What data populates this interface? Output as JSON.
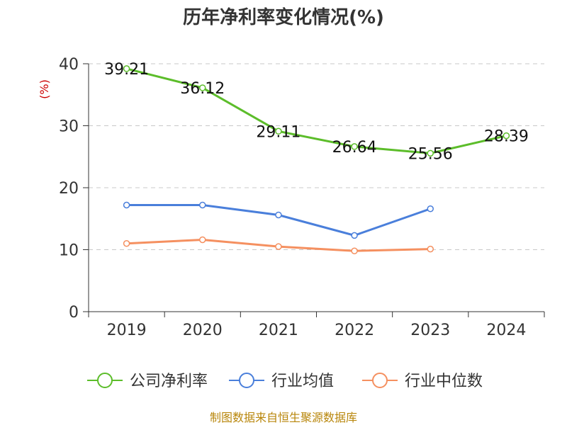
{
  "chart_data": {
    "type": "line",
    "title": "历年净利率变化情况(%)",
    "ylabel": "(%)",
    "xlabel": "",
    "categories": [
      "2019",
      "2020",
      "2021",
      "2022",
      "2023",
      "2024"
    ],
    "ylim": [
      0,
      40
    ],
    "yticks": [
      0,
      10,
      20,
      30,
      40
    ],
    "grid": true,
    "legend_position": "bottom",
    "series": [
      {
        "name": "公司净利率",
        "color": "#5cbd2a",
        "values": [
          39.21,
          36.12,
          29.11,
          26.64,
          25.56,
          28.39
        ],
        "labels": [
          "39.21",
          "36.12",
          "29.11",
          "26.64",
          "25.56",
          "28.39"
        ]
      },
      {
        "name": "行业均值",
        "color": "#4a7fdb",
        "values": [
          17.2,
          17.2,
          15.6,
          12.3,
          16.6,
          null
        ]
      },
      {
        "name": "行业中位数",
        "color": "#f59060",
        "values": [
          11.0,
          11.6,
          10.5,
          9.8,
          10.1,
          null
        ]
      }
    ]
  },
  "source": "制图数据来自恒生聚源数据库"
}
